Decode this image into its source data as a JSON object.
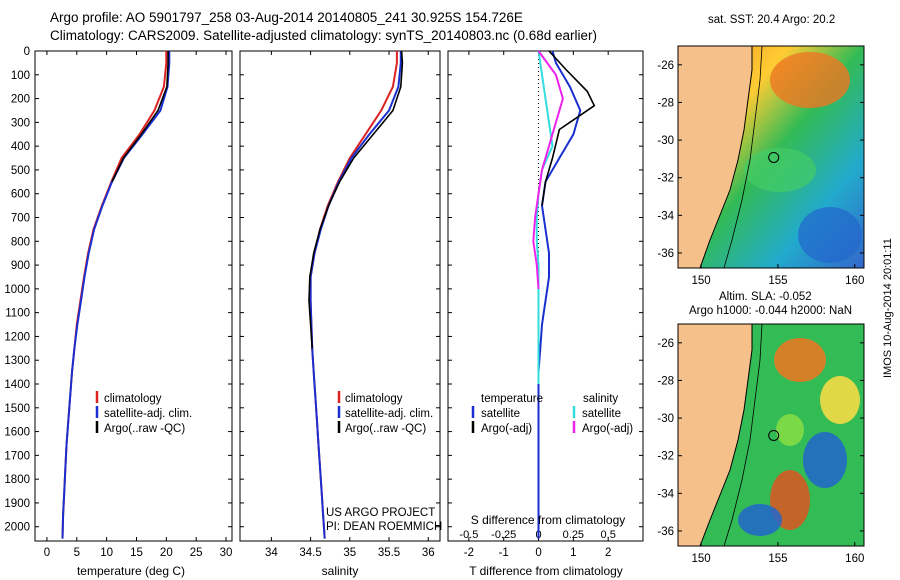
{
  "header": {
    "title_line1": "Argo profile: AO 5901797_258 03-Aug-2014 20140805_241 30.925S 154.726E",
    "title_line2": "Climatology: CARS2009. Satellite-adjusted climatology: synTS_20140803.nc (0.68d earlier)"
  },
  "colors": {
    "climatology": "#dd2222",
    "satellite": "#1a2fd0",
    "argo": "#000000",
    "s_satellite": "#33dddd",
    "s_argo": "#ee22ee",
    "land": "#f5c08a"
  },
  "depth_axis": {
    "ticks": [
      0,
      100,
      200,
      300,
      400,
      500,
      600,
      700,
      800,
      900,
      1000,
      1100,
      1200,
      1300,
      1400,
      1500,
      1600,
      1700,
      1800,
      1900,
      2000
    ],
    "range": [
      0,
      2060
    ]
  },
  "legends": {
    "temp": [
      "climatology",
      "satellite-adj. clim.",
      "Argo(..raw -QC)"
    ],
    "sal": [
      "climatology",
      "satellite-adj. clim.",
      "Argo(..raw -QC)"
    ],
    "diff_temp_header": "temperature",
    "diff_sal_header": "salinity",
    "diff_temp": [
      "satellite",
      "Argo(-adj)"
    ],
    "diff_sal": [
      "satellite",
      "Argo(-adj)"
    ]
  },
  "credit": {
    "line1": "US ARGO PROJECT",
    "line2": "PI: DEAN ROEMMICH"
  },
  "maps": {
    "sst_caption": "sat. SST: 20.4  Argo: 20.2",
    "sla_caption1": "Altim. SLA: -0.052",
    "sla_caption2": "Argo h1000: -0.044  h2000: NaN",
    "lat_ticks": [
      "-26",
      "-28",
      "-30",
      "-32",
      "-34",
      "-36"
    ],
    "lon_ticks": [
      "150",
      "155",
      "160"
    ],
    "profile_location": {
      "lon": 154.726,
      "lat": -30.925
    }
  },
  "stamp": "IMOS 10-Aug-2014 20:01:11",
  "chart_data": [
    {
      "type": "line",
      "xlabel": "temperature (deg C)",
      "ylabel": "",
      "xlim": [
        -2,
        31
      ],
      "ylim": [
        2060,
        0
      ],
      "xticks": [
        0,
        5,
        10,
        15,
        20,
        25,
        30
      ],
      "series": [
        {
          "name": "climatology",
          "color": "#dd2222",
          "x": [
            20.0,
            20.0,
            19.6,
            18.0,
            15.5,
            12.5,
            10.8,
            9.2,
            7.8,
            6.9,
            6.2,
            5.6,
            5.0,
            4.6,
            4.2,
            3.9,
            3.6,
            3.3,
            3.1,
            2.9,
            2.7,
            2.6
          ],
          "y": [
            0,
            50,
            150,
            250,
            350,
            450,
            550,
            650,
            750,
            850,
            950,
            1050,
            1150,
            1250,
            1350,
            1450,
            1550,
            1650,
            1750,
            1850,
            1950,
            2050
          ]
        },
        {
          "name": "satellite-adj. clim.",
          "color": "#1a2fd0",
          "x": [
            20.5,
            20.5,
            20.2,
            19.0,
            16.0,
            12.9,
            10.9,
            9.3,
            7.9,
            7.0,
            6.3,
            5.7,
            5.1,
            4.6,
            4.2,
            3.9,
            3.6,
            3.3,
            3.1,
            2.9,
            2.7,
            2.6
          ],
          "y": [
            0,
            50,
            150,
            250,
            350,
            450,
            550,
            650,
            750,
            850,
            950,
            1050,
            1150,
            1250,
            1350,
            1450,
            1550,
            1650,
            1750,
            1850,
            1950,
            2050
          ]
        },
        {
          "name": "Argo(..raw -QC)",
          "color": "#000000",
          "x": [
            20.3,
            20.3,
            20.1,
            18.6,
            15.8,
            12.8,
            10.9
          ],
          "y": [
            0,
            50,
            150,
            250,
            350,
            450,
            550
          ]
        }
      ]
    },
    {
      "type": "line",
      "xlabel": "salinity",
      "ylabel": "",
      "xlim": [
        33.6,
        36.15
      ],
      "ylim": [
        2060,
        0
      ],
      "xticks": [
        34,
        34.5,
        35,
        35.5,
        36
      ],
      "series": [
        {
          "name": "climatology",
          "color": "#dd2222",
          "x": [
            35.6,
            35.6,
            35.55,
            35.4,
            35.2,
            35.0,
            34.85,
            34.72,
            34.62,
            34.55,
            34.5,
            34.5,
            34.51,
            34.52,
            34.54,
            34.56,
            34.58,
            34.6,
            34.62,
            34.64,
            34.66,
            34.68
          ],
          "y": [
            0,
            50,
            150,
            250,
            350,
            450,
            550,
            650,
            750,
            850,
            950,
            1050,
            1150,
            1250,
            1350,
            1450,
            1550,
            1650,
            1750,
            1850,
            1950,
            2050
          ]
        },
        {
          "name": "satellite-adj. clim.",
          "color": "#1a2fd0",
          "x": [
            35.65,
            35.65,
            35.62,
            35.5,
            35.25,
            35.02,
            34.86,
            34.73,
            34.63,
            34.55,
            34.5,
            34.5,
            34.51,
            34.52,
            34.54,
            34.56,
            34.58,
            34.6,
            34.62,
            34.64,
            34.66,
            34.68
          ],
          "y": [
            0,
            50,
            150,
            250,
            350,
            450,
            550,
            650,
            750,
            850,
            950,
            1050,
            1150,
            1250,
            1350,
            1450,
            1550,
            1650,
            1750,
            1850,
            1950,
            2050
          ]
        },
        {
          "name": "Argo(..raw -QC)",
          "color": "#000000",
          "x": [
            35.66,
            35.67,
            35.65,
            35.55,
            35.3,
            35.05,
            34.87,
            34.73,
            34.62,
            34.54,
            34.49,
            34.48,
            34.5,
            34.52
          ],
          "y": [
            0,
            50,
            150,
            250,
            350,
            450,
            550,
            650,
            750,
            850,
            950,
            1050,
            1150,
            1250
          ]
        }
      ]
    },
    {
      "type": "line",
      "xlabel": "T difference from climatology",
      "xlabel_top": "S difference from climatology",
      "ylabel": "",
      "xlim": [
        -2.6,
        3.0
      ],
      "ylim": [
        2060,
        0
      ],
      "xticks": [
        -2,
        -1,
        0,
        1,
        2
      ],
      "xticks_top_labels": [
        "-0.5",
        "-0.25",
        "0",
        "0.25",
        "0.5"
      ],
      "xticks_top_positions": [
        -2,
        -1,
        0,
        1,
        2
      ],
      "series": [
        {
          "name": "temperature satellite",
          "color": "#1a2fd0",
          "x": [
            0.4,
            0.5,
            0.9,
            1.2,
            1.0,
            0.6,
            0.2,
            0.1,
            0.2,
            0.3,
            0.3,
            0.2,
            0.1,
            0.05,
            0.0,
            0.0,
            0.0,
            0.0,
            0.0,
            0.0,
            0.0,
            0.0
          ],
          "y": [
            0,
            50,
            150,
            250,
            350,
            450,
            550,
            650,
            750,
            850,
            950,
            1050,
            1150,
            1250,
            1350,
            1450,
            1550,
            1650,
            1750,
            1850,
            1950,
            2050
          ]
        },
        {
          "name": "temperature Argo(-adj)",
          "color": "#000000",
          "x": [
            0.3,
            0.8,
            1.4,
            1.6,
            0.6,
            0.4,
            0.2,
            0.1
          ],
          "y": [
            0,
            80,
            170,
            230,
            330,
            450,
            550,
            650
          ]
        },
        {
          "name": "salinity satellite",
          "color": "#33dddd",
          "x": [
            0.0,
            0.1,
            0.2,
            0.3,
            0.4,
            0.1,
            0.0,
            -0.05,
            -0.05,
            0.0,
            0.0,
            0.0,
            0.0,
            0.0,
            0.0
          ],
          "y": [
            0,
            100,
            200,
            300,
            400,
            500,
            600,
            700,
            800,
            900,
            1000,
            1100,
            1200,
            1300,
            1400
          ]
        },
        {
          "name": "salinity Argo(-adj)",
          "color": "#ee22ee",
          "x": [
            0.0,
            0.5,
            0.7,
            0.5,
            0.3,
            0.1,
            0.0,
            -0.1,
            -0.15,
            -0.05,
            0.0
          ],
          "y": [
            0,
            100,
            200,
            300,
            400,
            500,
            600,
            700,
            800,
            900,
            1000
          ]
        }
      ]
    }
  ]
}
